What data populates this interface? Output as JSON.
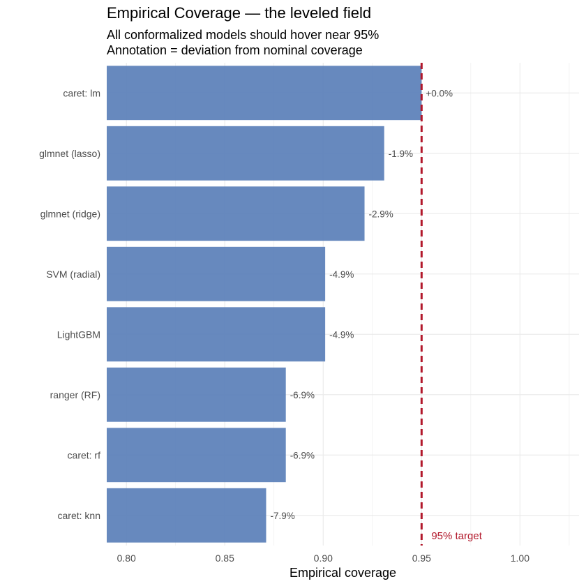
{
  "chart_data": {
    "type": "bar",
    "orientation": "horizontal",
    "title": "Empirical Coverage — the leveled field",
    "subtitle": [
      "All conformalized models should hover near 95%",
      "Annotation = deviation from nominal coverage"
    ],
    "xlabel": "Empirical coverage",
    "ylabel": "",
    "xlim": [
      0.79,
      1.03
    ],
    "x_ticks": [
      0.8,
      0.85,
      0.9,
      0.95,
      1.0
    ],
    "x_tick_labels": [
      "0.80",
      "0.85",
      "0.90",
      "0.95",
      "1.00"
    ],
    "grid": true,
    "categories": [
      "caret: lm",
      "glmnet (lasso)",
      "glmnet (ridge)",
      "SVM (radial)",
      "LightGBM",
      "ranger (RF)",
      "caret: rf",
      "caret: knn"
    ],
    "values": [
      0.95,
      0.931,
      0.921,
      0.901,
      0.901,
      0.881,
      0.881,
      0.871
    ],
    "labels": [
      "+0.0%",
      "-1.9%",
      "-2.9%",
      "-4.9%",
      "-4.9%",
      "-6.9%",
      "-6.9%",
      "-7.9%"
    ],
    "reference_line": {
      "value": 0.95,
      "label": "95% target",
      "style": "dashed"
    },
    "colors": {
      "bar": "#5a7fb8",
      "reference": "#b2182b",
      "grid": "#ebebeb"
    }
  }
}
